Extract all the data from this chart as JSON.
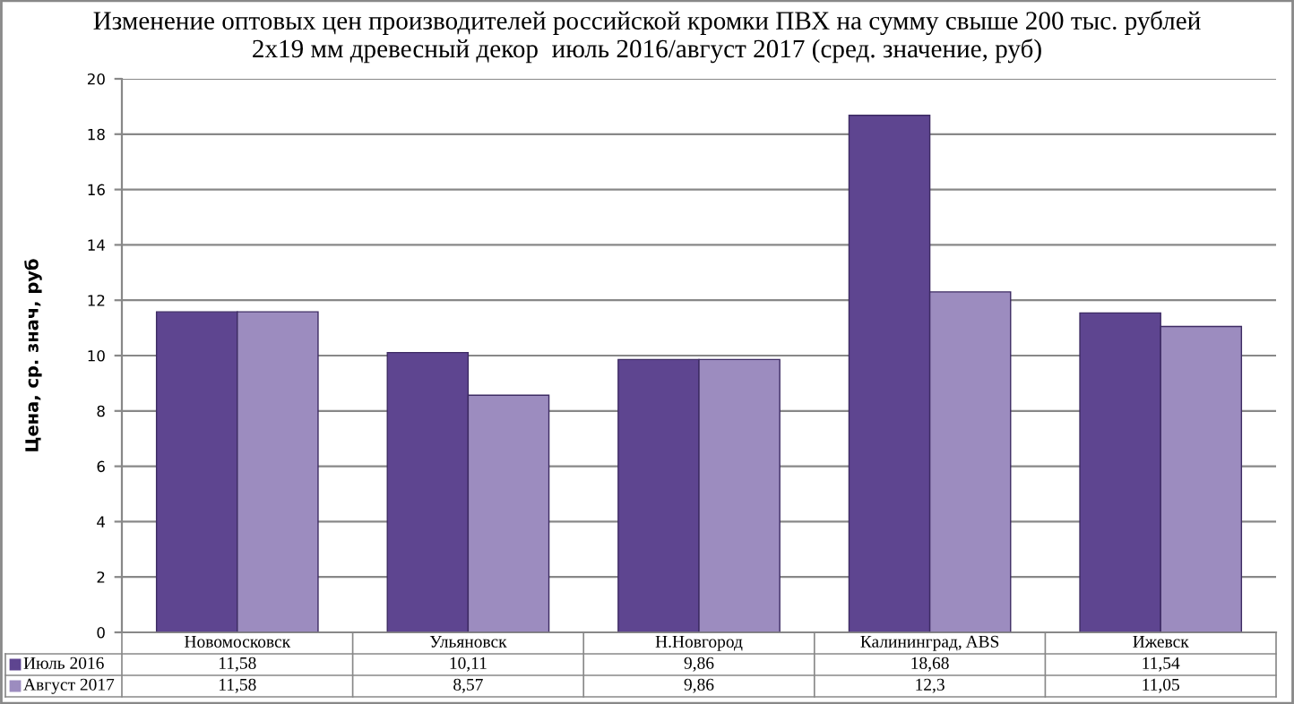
{
  "chart_data": {
    "type": "bar",
    "title": "Изменение оптовых цен производителей российской кромки ПВХ на сумму свыше 200 тыс. рублей\n2х19 мм древесный декор  июль 2016/август 2017 (сред. значение, руб)",
    "ylabel": "Цена, ср. знач, руб",
    "categories": [
      "Новомосковск",
      "Ульяновск",
      "Н.Новгород",
      "Калининград, ABS",
      "Ижевск"
    ],
    "series": [
      {
        "name": "Июль 2016",
        "color": "#5e4590",
        "values": [
          11.58,
          10.11,
          9.86,
          18.68,
          11.54
        ],
        "value_labels": [
          "11,58",
          "10,11",
          "9,86",
          "18,68",
          "11,54"
        ]
      },
      {
        "name": "Август 2017",
        "color": "#9c8cbf",
        "values": [
          11.58,
          8.57,
          9.86,
          12.3,
          11.05
        ],
        "value_labels": [
          "11,58",
          "8,57",
          "9,86",
          "12,3",
          "11,05"
        ]
      }
    ],
    "ylim": [
      0,
      20
    ],
    "yticks": [
      0,
      2,
      4,
      6,
      8,
      10,
      12,
      14,
      16,
      18,
      20
    ],
    "grid": "y",
    "legend": "bottom"
  }
}
